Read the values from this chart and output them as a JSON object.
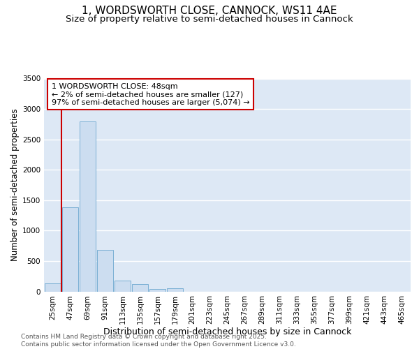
{
  "title_line1": "1, WORDSWORTH CLOSE, CANNOCK, WS11 4AE",
  "title_line2": "Size of property relative to semi-detached houses in Cannock",
  "xlabel": "Distribution of semi-detached houses by size in Cannock",
  "ylabel": "Number of semi-detached properties",
  "categories": [
    "25sqm",
    "47sqm",
    "69sqm",
    "91sqm",
    "113sqm",
    "135sqm",
    "157sqm",
    "179sqm",
    "201sqm",
    "223sqm",
    "245sqm",
    "267sqm",
    "289sqm",
    "311sqm",
    "333sqm",
    "355sqm",
    "377sqm",
    "399sqm",
    "421sqm",
    "443sqm",
    "465sqm"
  ],
  "values": [
    127,
    1380,
    2800,
    680,
    175,
    115,
    45,
    55,
    0,
    0,
    0,
    0,
    0,
    0,
    0,
    0,
    0,
    0,
    0,
    0,
    0
  ],
  "bar_color": "#ccddf0",
  "bar_edge_color": "#7aafd4",
  "bar_linewidth": 0.7,
  "ylim": [
    0,
    3500
  ],
  "yticks": [
    0,
    500,
    1000,
    1500,
    2000,
    2500,
    3000,
    3500
  ],
  "property_bar_index": 1,
  "red_line_color": "#cc0000",
  "annotation_text": "1 WORDSWORTH CLOSE: 48sqm\n← 2% of semi-detached houses are smaller (127)\n97% of semi-detached houses are larger (5,074) →",
  "annotation_box_color": "#ffffff",
  "annotation_box_edge": "#cc0000",
  "annotation_fontsize": 8,
  "background_color": "#dde8f5",
  "grid_color": "#ffffff",
  "title_fontsize": 11,
  "subtitle_fontsize": 9.5,
  "xlabel_fontsize": 9,
  "ylabel_fontsize": 8.5,
  "tick_fontsize": 7.5,
  "footer_line1": "Contains HM Land Registry data © Crown copyright and database right 2025.",
  "footer_line2": "Contains public sector information licensed under the Open Government Licence v3.0.",
  "footer_fontsize": 6.5
}
